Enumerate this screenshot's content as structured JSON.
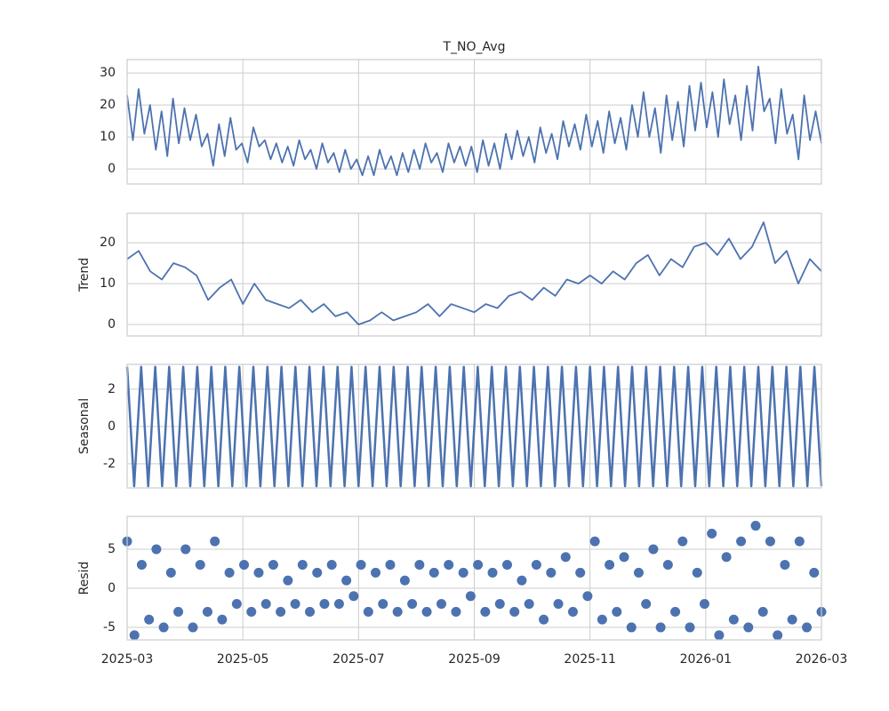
{
  "chart_data": [
    {
      "type": "line",
      "title": "T_NO_Avg",
      "color": "#4c72b0",
      "ylim": [
        -4.7,
        34.2
      ],
      "yticks": [
        0,
        10,
        20,
        30
      ],
      "grid": true,
      "values": [
        23,
        9,
        25,
        11,
        20,
        6,
        18,
        4,
        22,
        8,
        19,
        9,
        17,
        7,
        11,
        1,
        14,
        4,
        16,
        6,
        8,
        2,
        13,
        7,
        9,
        3,
        8,
        2,
        7,
        1,
        9,
        3,
        6,
        0,
        8,
        2,
        5,
        -1,
        6,
        0,
        3,
        -2,
        4,
        -2,
        6,
        0,
        4,
        -2,
        5,
        -1,
        6,
        0,
        8,
        2,
        5,
        -1,
        8,
        2,
        7,
        1,
        7,
        -1,
        9,
        1,
        8,
        0,
        11,
        3,
        12,
        4,
        10,
        2,
        13,
        5,
        11,
        3,
        15,
        7,
        14,
        6,
        17,
        7,
        15,
        5,
        18,
        8,
        16,
        6,
        20,
        10,
        24,
        10,
        19,
        5,
        23,
        9,
        21,
        7,
        26,
        12,
        27,
        13,
        24,
        10,
        28,
        14,
        23,
        9,
        26,
        12,
        32,
        18,
        22,
        8,
        25,
        11,
        17,
        3,
        23,
        9,
        18,
        8
      ]
    },
    {
      "type": "line",
      "ylabel": "Trend",
      "color": "#4c72b0",
      "ylim": [
        -2.8,
        27.2
      ],
      "yticks": [
        0,
        10,
        20
      ],
      "grid": true,
      "values": [
        16,
        18,
        13,
        11,
        15,
        14,
        12,
        6,
        9,
        11,
        5,
        10,
        6,
        5,
        4,
        6,
        3,
        5,
        2,
        3,
        0,
        1,
        3,
        1,
        2,
        3,
        5,
        2,
        5,
        4,
        3,
        5,
        4,
        7,
        8,
        6,
        9,
        7,
        11,
        10,
        12,
        10,
        13,
        11,
        15,
        17,
        12,
        16,
        14,
        19,
        20,
        17,
        21,
        16,
        19,
        25,
        15,
        18,
        10,
        16,
        13
      ]
    },
    {
      "type": "line",
      "ylabel": "Seasonal",
      "color": "#4c72b0",
      "ylim": [
        -3.29,
        3.33
      ],
      "yticks": [
        -2,
        0,
        2
      ],
      "grid": true,
      "values": [
        3.2,
        -3.2,
        3.2,
        -3.2,
        3.2,
        -3.2,
        3.2,
        -3.2,
        3.2,
        -3.2,
        3.2,
        -3.2,
        3.2,
        -3.2,
        3.2,
        -3.2,
        3.2,
        -3.2,
        3.2,
        -3.2,
        3.2,
        -3.2,
        3.2,
        -3.2,
        3.2,
        -3.2,
        3.2,
        -3.2,
        3.2,
        -3.2,
        3.2,
        -3.2,
        3.2,
        -3.2,
        3.2,
        -3.2,
        3.2,
        -3.2,
        3.2,
        -3.2,
        3.2,
        -3.2,
        3.2,
        -3.2,
        3.2,
        -3.2,
        3.2,
        -3.2,
        3.2,
        -3.2,
        3.2,
        -3.2,
        3.2,
        -3.2,
        3.2,
        -3.2,
        3.2,
        -3.2,
        3.2,
        -3.2,
        3.2,
        -3.2,
        3.2,
        -3.2,
        3.2,
        -3.2,
        3.2,
        -3.2,
        3.2,
        -3.2,
        3.2,
        -3.2,
        3.2,
        -3.2,
        3.2,
        -3.2,
        3.2,
        -3.2,
        3.2,
        -3.2,
        3.2,
        -3.2,
        3.2,
        -3.2,
        3.2,
        -3.2,
        3.2,
        -3.2,
        3.2,
        -3.2,
        3.2,
        -3.2,
        3.2,
        -3.2,
        3.2,
        -3.2,
        3.2,
        -3.2,
        3.2,
        -3.2
      ]
    },
    {
      "type": "scatter",
      "ylabel": "Resid",
      "color": "#4c72b0",
      "ylim": [
        -6.6,
        9.2
      ],
      "yticks": [
        -5,
        0,
        5
      ],
      "grid": true,
      "xlim": [
        "2025-03",
        "2026-03"
      ],
      "xticks": [
        "2025-03",
        "2025-05",
        "2025-07",
        "2025-09",
        "2025-11",
        "2026-01",
        "2026-03"
      ],
      "values": [
        6,
        -6,
        3,
        -4,
        5,
        -5,
        2,
        -3,
        5,
        -5,
        3,
        -3,
        6,
        -4,
        2,
        -2,
        3,
        -3,
        2,
        -2,
        3,
        -3,
        1,
        -2,
        3,
        -3,
        2,
        -2,
        3,
        -2,
        1,
        -1,
        3,
        -3,
        2,
        -2,
        3,
        -3,
        1,
        -2,
        3,
        -3,
        2,
        -2,
        3,
        -3,
        2,
        -1,
        3,
        -3,
        2,
        -2,
        3,
        -3,
        1,
        -2,
        3,
        -4,
        2,
        -2,
        4,
        -3,
        2,
        -1,
        6,
        -4,
        3,
        -3,
        4,
        -5,
        2,
        -2,
        5,
        -5,
        3,
        -3,
        6,
        -5,
        2,
        -2,
        7,
        -6,
        4,
        -4,
        6,
        -5,
        8,
        -3,
        6,
        -6,
        3,
        -4,
        6,
        -5,
        2,
        -3
      ]
    }
  ]
}
